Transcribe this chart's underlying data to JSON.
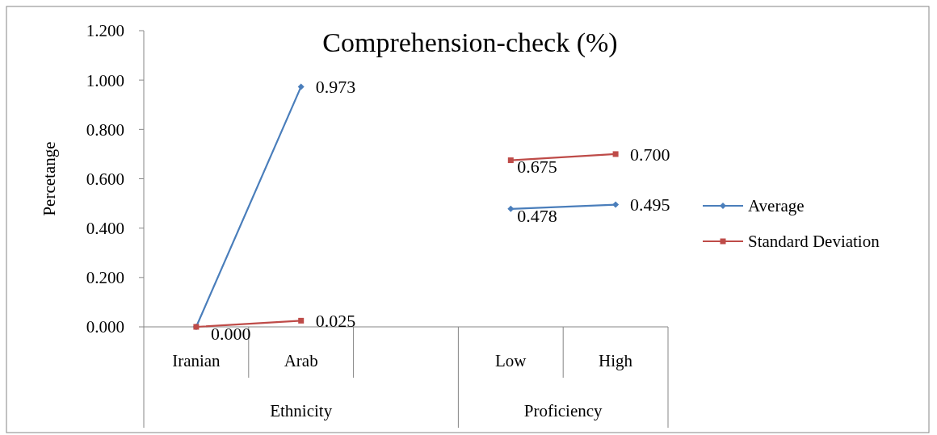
{
  "chart_data": {
    "type": "line",
    "title": "Comprehension-check (%)",
    "ylabel": "Percetange",
    "categories": [
      "Iranian",
      "Arab",
      null,
      "Low",
      "High"
    ],
    "annotations": [
      "Ethnicity",
      "Proficiency"
    ],
    "series": [
      {
        "name": "Average",
        "color": "#4a7ebb",
        "marker": "diamond",
        "values": [
          0,
          0.973,
          null,
          0.478,
          0.495
        ],
        "value_labels": [
          null,
          "0.973",
          null,
          "0.478",
          "0.495"
        ]
      },
      {
        "name": "Standard Deviation",
        "color": "#be4b48",
        "marker": "square",
        "values": [
          0,
          0.025,
          null,
          0.675,
          0.7
        ],
        "value_labels": [
          "0.000",
          "0.025",
          null,
          "0.675",
          "0.700"
        ]
      }
    ],
    "ylim": [
      0,
      1.2
    ],
    "yticks": [
      {
        "value": 0,
        "label": "0.000"
      },
      {
        "value": 0.2,
        "label": "0.200"
      },
      {
        "value": 0.4,
        "label": "0.400"
      },
      {
        "value": 0.6,
        "label": "0.600"
      },
      {
        "value": 0.8,
        "label": "0.800"
      },
      {
        "value": 1,
        "label": "1.000"
      },
      {
        "value": 1.2,
        "label": "1.200"
      }
    ],
    "legend": "right",
    "grid": false,
    "line_style": "solid"
  }
}
